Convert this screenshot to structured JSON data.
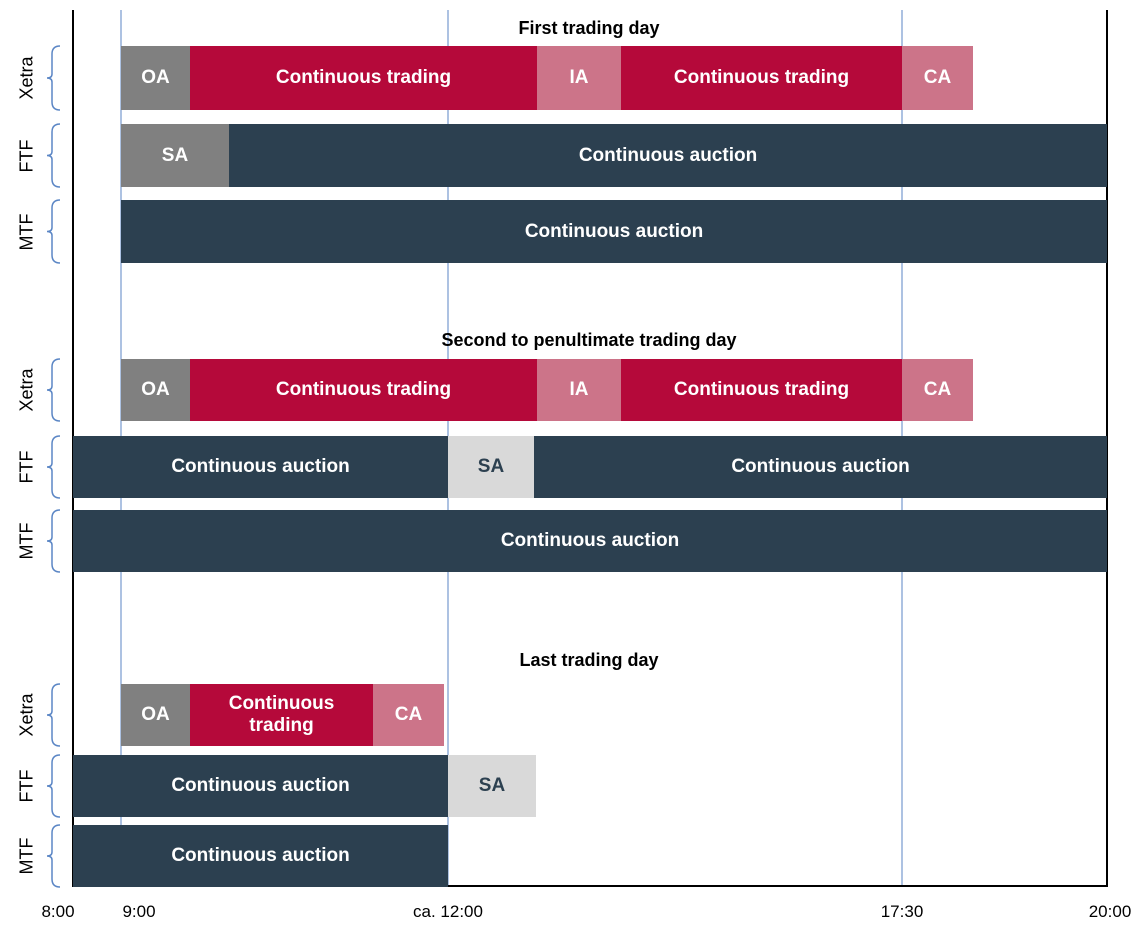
{
  "sections": [
    {
      "title": "First trading day",
      "rows": [
        {
          "label": "Xetra",
          "segments": [
            {
              "text": "OA"
            },
            {
              "text": "Continuous trading"
            },
            {
              "text": "IA"
            },
            {
              "text": "Continuous trading"
            },
            {
              "text": "CA"
            }
          ]
        },
        {
          "label": "FTF",
          "segments": [
            {
              "text": "SA"
            },
            {
              "text": "Continuous auction"
            }
          ]
        },
        {
          "label": "MTF",
          "segments": [
            {
              "text": "Continuous auction"
            }
          ]
        }
      ]
    },
    {
      "title": "Second to penultimate trading day",
      "rows": [
        {
          "label": "Xetra",
          "segments": [
            {
              "text": "OA"
            },
            {
              "text": "Continuous trading"
            },
            {
              "text": "IA"
            },
            {
              "text": "Continuous trading"
            },
            {
              "text": "CA"
            }
          ]
        },
        {
          "label": "FTF",
          "segments": [
            {
              "text": "Continuous auction"
            },
            {
              "text": "SA"
            },
            {
              "text": "Continuous auction"
            }
          ]
        },
        {
          "label": "MTF",
          "segments": [
            {
              "text": "Continuous auction"
            }
          ]
        }
      ]
    },
    {
      "title": "Last trading day",
      "rows": [
        {
          "label": "Xetra",
          "segments": [
            {
              "text": "OA"
            },
            {
              "text": "Continuous trading"
            },
            {
              "text": "CA"
            }
          ]
        },
        {
          "label": "FTF",
          "segments": [
            {
              "text": "Continuous auction"
            },
            {
              "text": "SA"
            }
          ]
        },
        {
          "label": "MTF",
          "segments": [
            {
              "text": "Continuous auction"
            }
          ]
        }
      ]
    }
  ],
  "axis_labels": [
    "8:00",
    "9:00",
    "ca. 12:00",
    "17:30",
    "20:00"
  ]
}
